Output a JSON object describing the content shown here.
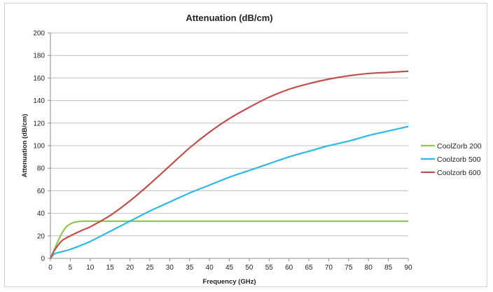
{
  "chart_data": {
    "type": "line",
    "title": "Attenuation (dB/cm)",
    "xlabel": "Frequency (GHz)",
    "ylabel": "Attenuation (dB/cm)",
    "xlim": [
      0,
      90
    ],
    "ylim": [
      0,
      200
    ],
    "x_ticks": [
      "0",
      "5",
      "10",
      "15",
      "20",
      "25",
      "30",
      "35",
      "40",
      "45",
      "50",
      "55",
      "60",
      "65",
      "70",
      "75",
      "80",
      "85",
      "90"
    ],
    "y_ticks": [
      "0",
      "20",
      "40",
      "60",
      "80",
      "100",
      "120",
      "140",
      "160",
      "180",
      "200"
    ],
    "grid": "horizontal",
    "legend_position": "right",
    "series": [
      {
        "name": "CoolZorb 200",
        "color": "#92c652",
        "points": [
          [
            0,
            0
          ],
          [
            1,
            8
          ],
          [
            2,
            16
          ],
          [
            3,
            23
          ],
          [
            4,
            28
          ],
          [
            5,
            30.5
          ],
          [
            6,
            32
          ],
          [
            7,
            32.6
          ],
          [
            8,
            33
          ],
          [
            9,
            33
          ],
          [
            10,
            33
          ],
          [
            15,
            33
          ],
          [
            20,
            33
          ],
          [
            30,
            33
          ],
          [
            40,
            33
          ],
          [
            50,
            33
          ],
          [
            60,
            33
          ],
          [
            70,
            33
          ],
          [
            80,
            33
          ],
          [
            90,
            33
          ]
        ]
      },
      {
        "name": "Coolzorb 500",
        "color": "#2eb8e6",
        "points": [
          [
            0,
            0
          ],
          [
            1,
            4
          ],
          [
            3,
            6
          ],
          [
            5,
            8
          ],
          [
            8,
            12
          ],
          [
            10,
            15
          ],
          [
            15,
            24
          ],
          [
            20,
            33
          ],
          [
            25,
            42
          ],
          [
            30,
            50
          ],
          [
            35,
            58
          ],
          [
            40,
            65
          ],
          [
            45,
            72
          ],
          [
            50,
            78
          ],
          [
            55,
            84
          ],
          [
            60,
            90
          ],
          [
            65,
            95
          ],
          [
            70,
            100
          ],
          [
            75,
            104
          ],
          [
            80,
            109
          ],
          [
            85,
            113
          ],
          [
            90,
            117
          ]
        ]
      },
      {
        "name": "Coolzorb 600",
        "color": "#c0504d",
        "points": [
          [
            0,
            0
          ],
          [
            1,
            7
          ],
          [
            2,
            12
          ],
          [
            3,
            16
          ],
          [
            5,
            20
          ],
          [
            8,
            25
          ],
          [
            10,
            28
          ],
          [
            15,
            38
          ],
          [
            20,
            51
          ],
          [
            25,
            66
          ],
          [
            30,
            82
          ],
          [
            35,
            98
          ],
          [
            40,
            112
          ],
          [
            45,
            124
          ],
          [
            50,
            134
          ],
          [
            55,
            143
          ],
          [
            60,
            150
          ],
          [
            65,
            155
          ],
          [
            70,
            159
          ],
          [
            75,
            162
          ],
          [
            80,
            164
          ],
          [
            85,
            165
          ],
          [
            90,
            166
          ]
        ]
      }
    ]
  }
}
